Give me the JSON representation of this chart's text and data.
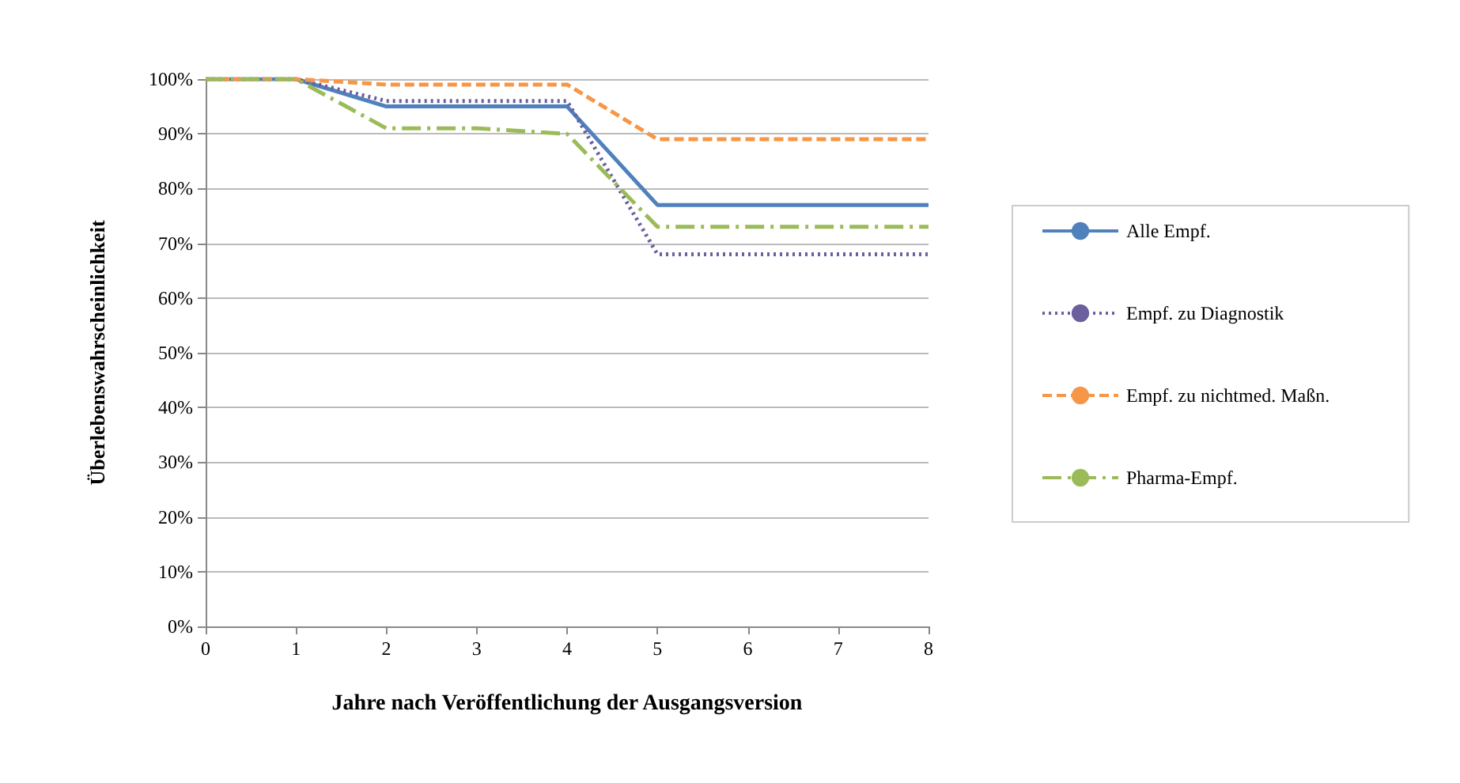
{
  "chart_data": {
    "type": "line",
    "xlabel": "Jahre nach Veröffentlichung der Ausgangsversion",
    "ylabel": "Überlebenswahrscheinlichkeit",
    "x": [
      0,
      1,
      2,
      3,
      4,
      5,
      6,
      7,
      8
    ],
    "series": [
      {
        "name": "Alle Empf.",
        "color": "#4f81bd",
        "line_style": "solid",
        "values": [
          100,
          100,
          95,
          95,
          95,
          77,
          77,
          77,
          77
        ]
      },
      {
        "name": "Empf. zu Diagnostik",
        "color": "#6b5f9e",
        "line_style": "dotted",
        "values": [
          100,
          100,
          96,
          96,
          96,
          68,
          68,
          68,
          68
        ]
      },
      {
        "name": "Empf. zu nichtmed. Maßn.",
        "color": "#f79646",
        "line_style": "dashed",
        "values": [
          100,
          100,
          99,
          99,
          99,
          89,
          89,
          89,
          89
        ]
      },
      {
        "name": "Pharma-Empf.",
        "color": "#9bbb59",
        "line_style": "dashdot",
        "values": [
          100,
          100,
          91,
          91,
          90,
          73,
          73,
          73,
          73
        ]
      }
    ],
    "xlim": [
      0,
      8
    ],
    "xticks": [
      0,
      1,
      2,
      3,
      4,
      5,
      6,
      7,
      8
    ],
    "ylim": [
      0,
      100
    ],
    "yticks": [
      {
        "value": 0,
        "label": "0%"
      },
      {
        "value": 10,
        "label": "10%"
      },
      {
        "value": 20,
        "label": "20%"
      },
      {
        "value": 30,
        "label": "30%"
      },
      {
        "value": 40,
        "label": "40%"
      },
      {
        "value": 50,
        "label": "50%"
      },
      {
        "value": 60,
        "label": "60%"
      },
      {
        "value": 70,
        "label": "70%"
      },
      {
        "value": 80,
        "label": "80%"
      },
      {
        "value": 90,
        "label": "90%"
      },
      {
        "value": 100,
        "label": "100%"
      }
    ],
    "grid": "y",
    "legend": "right",
    "marker": "none"
  }
}
